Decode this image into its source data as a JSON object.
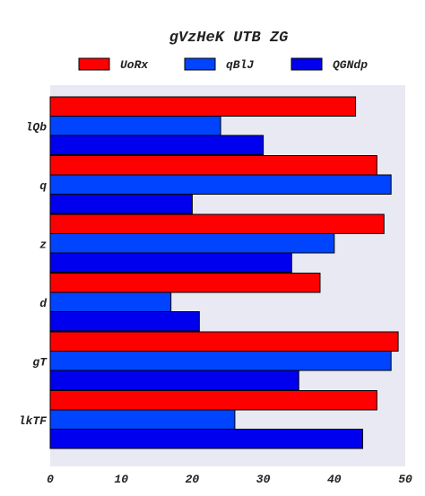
{
  "chart_data": {
    "type": "bar",
    "orientation": "horizontal",
    "title": "gVzHeK UTB ZG",
    "xlabel": "",
    "ylabel": "",
    "categories": [
      "lQb",
      "q",
      "z",
      "d",
      "gT",
      "lkTF"
    ],
    "series": [
      {
        "name": "UoRx",
        "color": "#ff0000",
        "values": [
          43,
          46,
          47,
          38,
          49,
          46
        ]
      },
      {
        "name": "qBlJ",
        "color": "#0044ff",
        "values": [
          24,
          48,
          40,
          17,
          48,
          26
        ]
      },
      {
        "name": "QGNdp",
        "color": "#0000ee",
        "values": [
          30,
          20,
          34,
          21,
          35,
          44
        ]
      }
    ],
    "xlim": [
      0,
      50
    ],
    "xticks": [
      0,
      10,
      20,
      30,
      40,
      50
    ],
    "grid": false,
    "legend_position": "top",
    "background": "#e9e9f3"
  }
}
